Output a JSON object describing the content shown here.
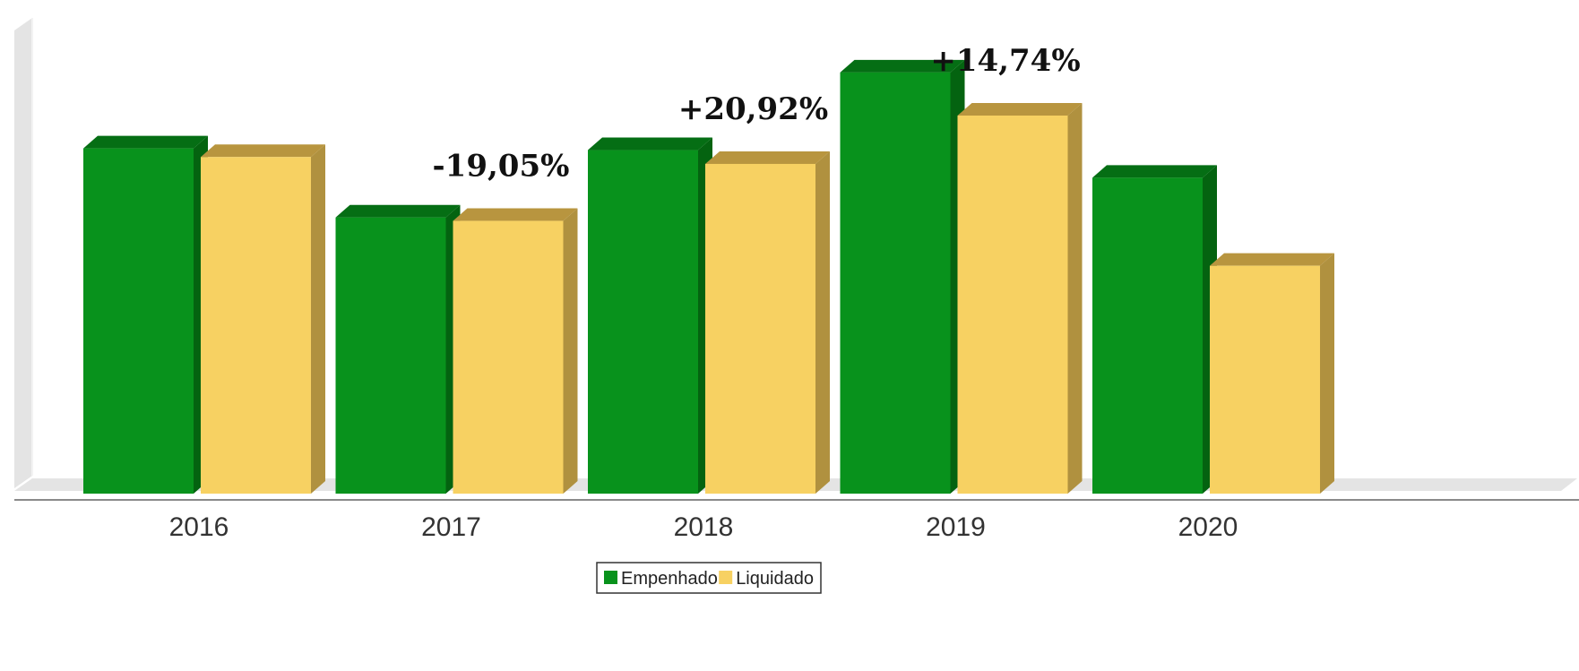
{
  "chart_data": {
    "type": "bar",
    "categories": [
      "2016",
      "2017",
      "2018",
      "2019",
      "2020"
    ],
    "series": [
      {
        "name": "Empenhado",
        "values": [
          100,
          80,
          99.5,
          122,
          91.5
        ]
      },
      {
        "name": "Liquidado",
        "values": [
          97.5,
          79,
          95.5,
          109.5,
          66
        ]
      }
    ],
    "ylim": [
      0,
      130
    ],
    "grid": false,
    "legend": "bottom-center",
    "annotations": [
      {
        "text": "-19,05%",
        "category": "2017"
      },
      {
        "text": "+20,92%",
        "category": "2018"
      },
      {
        "text": "+14,74%",
        "category": "2019"
      }
    ],
    "colors": {
      "Empenhado": {
        "front": "#08921c",
        "top": "#056e14",
        "side": "#046310"
      },
      "Liquidado": {
        "front": "#f7d162",
        "top": "#b8953f",
        "side": "#b0913f"
      },
      "wall": "#e4e4e4",
      "axis": "#8a8a8a"
    }
  }
}
